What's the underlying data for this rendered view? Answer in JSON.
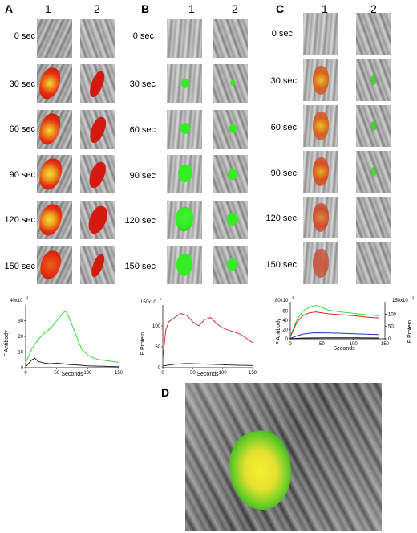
{
  "panels": {
    "A": {
      "letter": "A",
      "col1": "1",
      "col2": "2"
    },
    "B": {
      "letter": "B",
      "col1": "1",
      "col2": "2"
    },
    "C": {
      "letter": "C",
      "col1": "1",
      "col2": "2"
    },
    "D": {
      "letter": "D"
    }
  },
  "times": [
    "0 sec",
    "30 sec",
    "60 sec",
    "90 sec",
    "120 sec",
    "150 sec"
  ],
  "colors": {
    "antibody_green": "#33dd33",
    "background_black": "#222222",
    "protein_red": "#cc3333",
    "blue": "#2233cc",
    "image_red": "#e83010",
    "image_yellow": "#f2e030",
    "image_green": "#33ee22"
  },
  "chart_data": [
    {
      "type": "line",
      "panel": "A",
      "xlabel": "Seconds",
      "ylabel": "F Antibody",
      "ytick_top": "40x10",
      "ytick_top_exp": "3",
      "xlim": [
        0,
        150
      ],
      "ylim": [
        0,
        40000
      ],
      "xticks": [
        "0",
        "50",
        "100",
        "150"
      ],
      "yticks": [
        "0",
        "10",
        "20",
        "30"
      ],
      "series": [
        {
          "color": "#33dd33",
          "x": [
            0,
            10,
            20,
            30,
            40,
            50,
            60,
            65,
            70,
            80,
            90,
            100,
            110,
            120,
            130,
            140,
            150
          ],
          "y": [
            3000,
            12000,
            18000,
            22000,
            25000,
            30000,
            35000,
            36000,
            32000,
            22000,
            12000,
            8000,
            6000,
            5000,
            4500,
            4000,
            3500
          ]
        },
        {
          "color": "#222222",
          "x": [
            0,
            10,
            15,
            20,
            30,
            40,
            50,
            60,
            70,
            80,
            90,
            100,
            110,
            120,
            130,
            140,
            150
          ],
          "y": [
            500,
            5000,
            6000,
            4000,
            3000,
            2500,
            3000,
            2500,
            2000,
            1800,
            1500,
            1200,
            1000,
            900,
            800,
            700,
            600
          ]
        }
      ]
    },
    {
      "type": "line",
      "panel": "B",
      "xlabel": "Seconds",
      "ylabel": "F Protein",
      "ytick_top": "150x10",
      "ytick_top_exp": "3",
      "xlim": [
        0,
        150
      ],
      "ylim": [
        0,
        150000
      ],
      "xticks": [
        "0",
        "50",
        "100",
        "150"
      ],
      "yticks": [
        "0",
        "50",
        "100"
      ],
      "series": [
        {
          "color": "#cc3333",
          "x": [
            0,
            5,
            10,
            20,
            30,
            40,
            50,
            60,
            70,
            80,
            90,
            100,
            110,
            120,
            130,
            140,
            150
          ],
          "y": [
            20000,
            90000,
            110000,
            120000,
            130000,
            125000,
            110000,
            100000,
            115000,
            120000,
            105000,
            95000,
            90000,
            85000,
            80000,
            70000,
            60000
          ]
        },
        {
          "color": "#333333",
          "x": [
            0,
            20,
            40,
            60,
            80,
            100,
            120,
            150
          ],
          "y": [
            4000,
            8000,
            10000,
            9000,
            8000,
            7000,
            6000,
            5000
          ]
        }
      ]
    },
    {
      "type": "line",
      "panel": "C",
      "xlabel": "Seconds",
      "ylabel": "F Antibody",
      "ylabel_right": "F Protein",
      "ytick_top": "80x10",
      "ytick_top_exp": "3",
      "ytick_top_right": "150x10",
      "ytick_top_right_exp": "3",
      "xlim": [
        0,
        150
      ],
      "ylim": [
        0,
        80000
      ],
      "ylim_right": [
        0,
        150000
      ],
      "xticks": [
        "0",
        "50",
        "100",
        "150"
      ],
      "yticks": [
        "0",
        "20",
        "40",
        "60"
      ],
      "yticks_right": [
        "0",
        "50",
        "100"
      ],
      "series": [
        {
          "color": "#33dd33",
          "x": [
            0,
            10,
            20,
            30,
            40,
            50,
            60,
            80,
            100,
            120,
            140
          ],
          "y": [
            5000,
            40000,
            60000,
            68000,
            72000,
            68000,
            62000,
            58000,
            55000,
            52000,
            50000
          ]
        },
        {
          "color": "#dd2222",
          "x": [
            0,
            10,
            20,
            30,
            40,
            50,
            60,
            80,
            100,
            120,
            140
          ],
          "y": [
            4000,
            35000,
            50000,
            56000,
            58000,
            56000,
            54000,
            52000,
            50000,
            47000,
            45000
          ]
        },
        {
          "color": "#2233cc",
          "x": [
            0,
            10,
            20,
            30,
            40,
            60,
            80,
            100,
            120,
            140
          ],
          "y": [
            1000,
            6000,
            10000,
            12000,
            13000,
            12500,
            12000,
            11000,
            10000,
            9000
          ]
        },
        {
          "color": "#111111",
          "x": [
            0,
            20,
            40,
            60,
            80,
            100,
            120,
            140
          ],
          "y": [
            500,
            1500,
            2000,
            2200,
            2300,
            2200,
            2000,
            1800
          ]
        }
      ]
    }
  ]
}
